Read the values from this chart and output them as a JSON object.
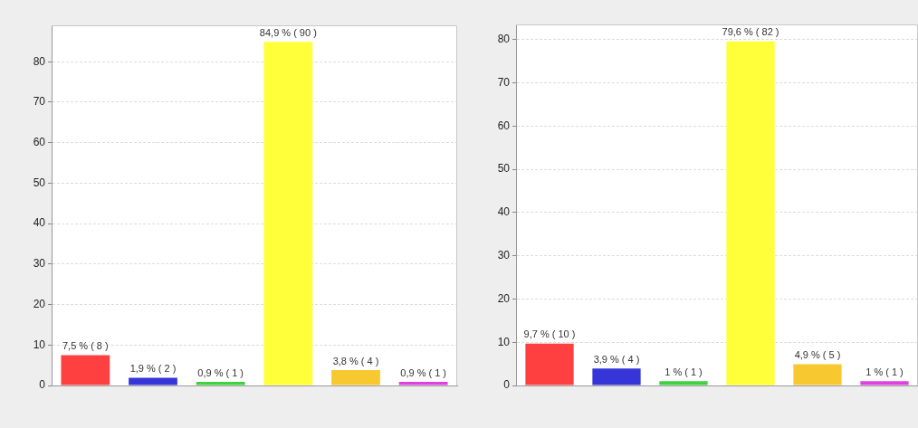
{
  "chart_data": [
    {
      "type": "bar",
      "categories": [
        null,
        null,
        null,
        null,
        null,
        null
      ],
      "values": [
        7.5,
        1.9,
        0.9,
        84.9,
        3.8,
        0.9
      ],
      "colors": [
        "#ff4040",
        "#3535d8",
        "#40d040",
        "#ffff3a",
        "#f8c830",
        "#e040e0"
      ],
      "value_labels": [
        "7,5 % ( 8 )",
        "1,9 % ( 2 )",
        "0,9 % ( 1 )",
        "84,9 % ( 90 )",
        "3,8 % ( 4 )",
        "0,9 % ( 1 )"
      ],
      "ylim": [
        0,
        89
      ],
      "yticks": [
        0,
        10,
        20,
        30,
        40,
        50,
        60,
        70,
        80
      ],
      "grid": "y",
      "tick_labels": "y"
    },
    {
      "type": "bar",
      "categories": [
        null,
        null,
        null,
        null,
        null,
        null
      ],
      "values": [
        9.7,
        3.9,
        1,
        79.6,
        4.9,
        1
      ],
      "colors": [
        "#ff4040",
        "#3535d8",
        "#40d040",
        "#ffff3a",
        "#f8c830",
        "#e040e0"
      ],
      "value_labels": [
        "9,7 % ( 10 )",
        "3,9 % ( 4 )",
        "1 % ( 1 )",
        "79,6 % ( 82 )",
        "4,9 % ( 5 )",
        "1 % ( 1 )"
      ],
      "ylim": [
        0,
        83.5
      ],
      "yticks": [
        0,
        10,
        20,
        30,
        40,
        50,
        60,
        70,
        80
      ],
      "grid": "y",
      "tick_labels": "y"
    }
  ]
}
